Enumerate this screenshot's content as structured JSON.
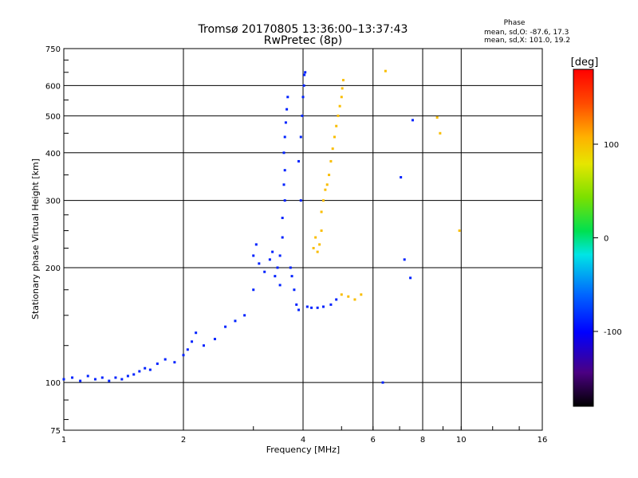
{
  "title_line1": "Tromsø 20170805 13:36:00–13:37:43",
  "title_line2": "RwPretec (8p)",
  "phase_stats": {
    "heading": "Phase",
    "line_o": "mean, sd,O: -87.6, 17.3",
    "line_x": "mean, sd,X: 101.0, 19.2"
  },
  "colorbar": {
    "label": "[deg]",
    "ticks": [
      "100",
      "0",
      "-100"
    ],
    "tick_values": [
      100,
      0,
      -100
    ],
    "range": [
      -180,
      180
    ]
  },
  "chart_data": {
    "type": "scatter",
    "title": "Tromsø 20170805 13:36:00–13:37:43",
    "subtitle": "RwPretec (8p)",
    "xlabel": "Frequency [MHz]",
    "ylabel": "Stationary phase Virtual Height [km]",
    "xscale": "log",
    "yscale": "log",
    "xlim": [
      1,
      16
    ],
    "ylim": [
      75,
      750
    ],
    "xticks": [
      "1",
      "2",
      "4",
      "6",
      "8",
      "10",
      "16"
    ],
    "xtick_values": [
      1,
      2,
      4,
      6,
      8,
      10,
      16
    ],
    "yticks": [
      "75",
      "100",
      "200",
      "300",
      "400",
      "500",
      "600",
      "750"
    ],
    "ytick_values": [
      75,
      100,
      200,
      300,
      400,
      500,
      600,
      750
    ],
    "grid": true,
    "color_by": "phase (deg)",
    "series": [
      {
        "mean_phase": -87.6,
        "points": [
          [
            1.0,
            102
          ],
          [
            1.05,
            103
          ],
          [
            1.1,
            101
          ],
          [
            1.15,
            104
          ],
          [
            1.2,
            102
          ],
          [
            1.25,
            103
          ],
          [
            1.3,
            101
          ],
          [
            1.35,
            103
          ],
          [
            1.4,
            102
          ],
          [
            1.45,
            104
          ],
          [
            1.5,
            105
          ],
          [
            1.55,
            107
          ],
          [
            1.6,
            109
          ],
          [
            1.65,
            108
          ],
          [
            1.72,
            112
          ],
          [
            1.8,
            115
          ],
          [
            1.9,
            113
          ],
          [
            2.0,
            118
          ],
          [
            2.05,
            122
          ],
          [
            2.1,
            128
          ],
          [
            2.15,
            135
          ],
          [
            2.25,
            125
          ],
          [
            2.4,
            130
          ],
          [
            2.55,
            140
          ],
          [
            2.7,
            145
          ],
          [
            2.85,
            150
          ],
          [
            3.0,
            175
          ],
          [
            3.0,
            215
          ],
          [
            3.05,
            230
          ],
          [
            3.1,
            205
          ],
          [
            3.2,
            195
          ],
          [
            3.3,
            210
          ],
          [
            3.35,
            220
          ],
          [
            3.4,
            190
          ],
          [
            3.45,
            200
          ],
          [
            3.5,
            215
          ],
          [
            3.5,
            180
          ],
          [
            3.55,
            240
          ],
          [
            3.55,
            270
          ],
          [
            3.6,
            300
          ],
          [
            3.58,
            330
          ],
          [
            3.6,
            360
          ],
          [
            3.58,
            400
          ],
          [
            3.6,
            440
          ],
          [
            3.62,
            480
          ],
          [
            3.64,
            520
          ],
          [
            3.66,
            560
          ],
          [
            3.72,
            200
          ],
          [
            3.75,
            190
          ],
          [
            3.8,
            175
          ],
          [
            3.85,
            160
          ],
          [
            3.9,
            155
          ],
          [
            3.95,
            300
          ],
          [
            3.9,
            380
          ],
          [
            3.95,
            440
          ],
          [
            3.98,
            500
          ],
          [
            4.0,
            560
          ],
          [
            4.02,
            600
          ],
          [
            4.03,
            640
          ],
          [
            4.05,
            650
          ],
          [
            4.1,
            158
          ],
          [
            4.2,
            157
          ],
          [
            4.35,
            157
          ],
          [
            4.5,
            158
          ],
          [
            4.7,
            160
          ],
          [
            4.85,
            165
          ],
          [
            6.35,
            100
          ],
          [
            7.05,
            345
          ],
          [
            7.2,
            210
          ],
          [
            7.45,
            188
          ],
          [
            7.55,
            487
          ]
        ]
      },
      {
        "mean_phase": 101.0,
        "points": [
          [
            4.25,
            225
          ],
          [
            4.3,
            240
          ],
          [
            4.35,
            220
          ],
          [
            4.4,
            230
          ],
          [
            4.45,
            250
          ],
          [
            4.45,
            280
          ],
          [
            4.5,
            300
          ],
          [
            4.55,
            320
          ],
          [
            4.6,
            330
          ],
          [
            4.65,
            350
          ],
          [
            4.7,
            380
          ],
          [
            4.75,
            410
          ],
          [
            4.8,
            440
          ],
          [
            4.85,
            470
          ],
          [
            4.9,
            500
          ],
          [
            4.95,
            530
          ],
          [
            5.0,
            560
          ],
          [
            5.02,
            590
          ],
          [
            5.05,
            620
          ],
          [
            5.0,
            170
          ],
          [
            5.2,
            168
          ],
          [
            5.4,
            165
          ],
          [
            5.6,
            170
          ],
          [
            6.45,
            655
          ],
          [
            8.7,
            495
          ],
          [
            8.85,
            450
          ],
          [
            9.9,
            250
          ]
        ]
      }
    ]
  }
}
